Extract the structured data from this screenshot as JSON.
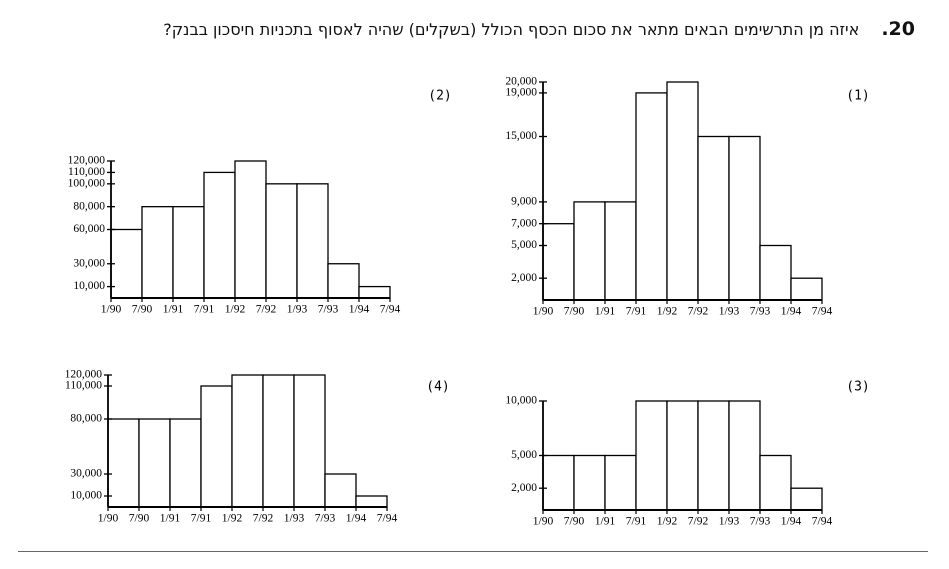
{
  "question": {
    "number": "20.",
    "text": "איזה מן התרשימים הבאים מתאר את סכום הכסף הכולל (בשקלים) שהיה לאסוף בתכניות חיסכון בבנק?"
  },
  "chart_data": [
    {
      "type": "histogram",
      "title": "(1)",
      "bins": [
        "1/90",
        "7/90",
        "1/91",
        "7/91",
        "1/92",
        "7/92",
        "1/93",
        "7/93",
        "1/94",
        "7/94"
      ],
      "values": [
        7000,
        9000,
        9000,
        19000,
        20000,
        15000,
        15000,
        5000,
        2000
      ],
      "ylim": [
        0,
        20000
      ],
      "yticks": [
        {
          "value": 2000,
          "label": "2,000"
        },
        {
          "value": 5000,
          "label": "5,000"
        },
        {
          "value": 7000,
          "label": "7,000"
        },
        {
          "value": 9000,
          "label": "9,000"
        },
        {
          "value": 15000,
          "label": "15,000"
        },
        {
          "value": 19000,
          "label": "19,000"
        },
        {
          "value": 20000,
          "label": "20,000"
        }
      ]
    },
    {
      "type": "histogram",
      "title": "(2)",
      "bins": [
        "1/90",
        "7/90",
        "1/91",
        "7/91",
        "1/92",
        "7/92",
        "1/93",
        "7/93",
        "1/94",
        "7/94"
      ],
      "values": [
        60000,
        80000,
        80000,
        110000,
        120000,
        100000,
        100000,
        30000,
        10000
      ],
      "ylim": [
        0,
        120000
      ],
      "yticks": [
        {
          "value": 10000,
          "label": "10,000"
        },
        {
          "value": 30000,
          "label": "30,000"
        },
        {
          "value": 60000,
          "label": "60,000"
        },
        {
          "value": 80000,
          "label": "80,000"
        },
        {
          "value": 100000,
          "label": "100,000"
        },
        {
          "value": 110000,
          "label": "110,000"
        },
        {
          "value": 120000,
          "label": "120,000"
        }
      ]
    },
    {
      "type": "histogram",
      "title": "(3)",
      "bins": [
        "1/90",
        "7/90",
        "1/91",
        "7/91",
        "1/92",
        "7/92",
        "1/93",
        "7/93",
        "1/94",
        "7/94"
      ],
      "values": [
        5000,
        5000,
        5000,
        10000,
        10000,
        10000,
        10000,
        5000,
        2000
      ],
      "ylim": [
        0,
        10000
      ],
      "yticks": [
        {
          "value": 2000,
          "label": "2,000"
        },
        {
          "value": 5000,
          "label": "5,000"
        },
        {
          "value": 10000,
          "label": "10,000"
        }
      ]
    },
    {
      "type": "histogram",
      "title": "(4)",
      "bins": [
        "1/90",
        "7/90",
        "1/91",
        "7/91",
        "1/92",
        "7/92",
        "1/93",
        "7/93",
        "1/94",
        "7/94"
      ],
      "values": [
        80000,
        80000,
        80000,
        110000,
        120000,
        120000,
        120000,
        30000,
        10000
      ],
      "ylim": [
        0,
        120000
      ],
      "yticks": [
        {
          "value": 10000,
          "label": "10,000"
        },
        {
          "value": 30000,
          "label": "30,000"
        },
        {
          "value": 80000,
          "label": "80,000"
        },
        {
          "value": 110000,
          "label": "110,000"
        },
        {
          "value": 120000,
          "label": "120,000"
        }
      ]
    }
  ]
}
